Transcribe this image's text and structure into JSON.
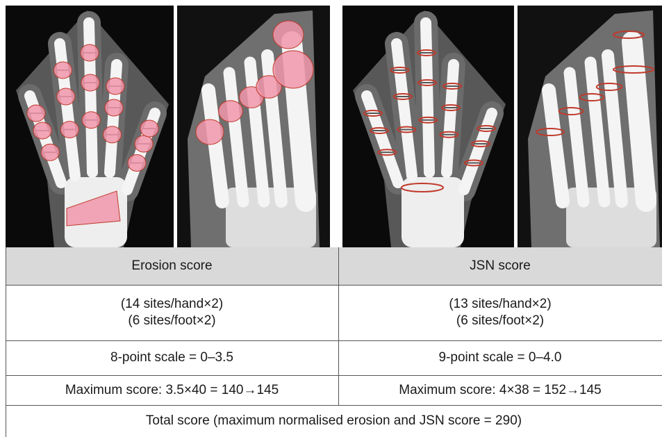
{
  "table": {
    "header": [
      "Erosion score",
      "JSN score"
    ],
    "rows": [
      [
        [
          "(14 sites/hand×2)",
          "(6 sites/foot×2)"
        ],
        [
          "(13 sites/hand×2)",
          "(6 sites/foot×2)"
        ]
      ],
      [
        "8-point scale = 0–3.5",
        "9-point scale = 0–4.0"
      ],
      [
        "Maximum score: 3.5×40 = 140→145",
        "Maximum score: 4×38 = 152→145"
      ]
    ],
    "footer": "Total score (maximum normalised erosion and JSN score = 290)"
  }
}
